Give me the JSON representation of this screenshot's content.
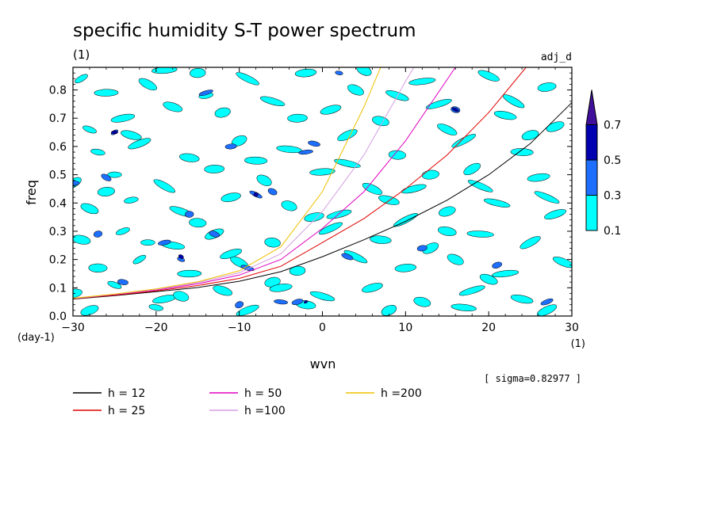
{
  "chart_data": {
    "type": "heatmap",
    "title": "specific humidity S-T power spectrum",
    "subtitle_left": "(1)",
    "subtitle_right": "adj_d",
    "xlabel": "wvn",
    "ylabel": "freq",
    "x_unit": "(1)",
    "y_unit": "(day-1)",
    "xlim": [
      -30,
      30
    ],
    "ylim": [
      0,
      0.88
    ],
    "x_ticks": [
      -30,
      -20,
      -10,
      0,
      10,
      20,
      30
    ],
    "y_ticks": [
      0.0,
      0.1,
      0.2,
      0.3,
      0.4,
      0.5,
      0.6,
      0.7,
      0.8
    ],
    "y_tick_labels": [
      "0.0",
      "0.1",
      "0.2",
      "0.3",
      "0.4",
      "0.5",
      "0.6",
      "0.7",
      "0.8"
    ],
    "note": "[ sigma=0.82977 ]",
    "colorbar": {
      "levels": [
        "0.1",
        "0.3",
        "0.5",
        "0.7"
      ],
      "colors": [
        "#00ffff",
        "#1e6fff",
        "#0000b0",
        "#40109a"
      ]
    },
    "contours": {
      "low": [
        [
          -29,
          0.84
        ],
        [
          -26,
          0.79
        ],
        [
          -21,
          0.82
        ],
        [
          -15,
          0.86
        ],
        [
          -9,
          0.84
        ],
        [
          -2,
          0.86
        ],
        [
          4,
          0.8
        ],
        [
          12,
          0.83
        ],
        [
          20,
          0.85
        ],
        [
          27,
          0.81
        ],
        [
          -28,
          0.66
        ],
        [
          -24,
          0.7
        ],
        [
          -18,
          0.74
        ],
        [
          -12,
          0.72
        ],
        [
          -6,
          0.76
        ],
        [
          1,
          0.73
        ],
        [
          7,
          0.69
        ],
        [
          14,
          0.75
        ],
        [
          22,
          0.71
        ],
        [
          28,
          0.67
        ],
        [
          -27,
          0.58
        ],
        [
          -22,
          0.61
        ],
        [
          -16,
          0.56
        ],
        [
          -10,
          0.62
        ],
        [
          -4,
          0.59
        ],
        [
          3,
          0.64
        ],
        [
          9,
          0.57
        ],
        [
          17,
          0.62
        ],
        [
          24,
          0.58
        ],
        [
          -30,
          0.47
        ],
        [
          -25,
          0.5
        ],
        [
          -19,
          0.46
        ],
        [
          -13,
          0.52
        ],
        [
          -7,
          0.48
        ],
        [
          0,
          0.51
        ],
        [
          6,
          0.45
        ],
        [
          13,
          0.5
        ],
        [
          19,
          0.46
        ],
        [
          26,
          0.49
        ],
        [
          -28,
          0.38
        ],
        [
          -23,
          0.41
        ],
        [
          -17,
          0.37
        ],
        [
          -11,
          0.42
        ],
        [
          -4,
          0.39
        ],
        [
          2,
          0.36
        ],
        [
          8,
          0.41
        ],
        [
          15,
          0.37
        ],
        [
          21,
          0.4
        ],
        [
          28,
          0.36
        ],
        [
          -29,
          0.27
        ],
        [
          -24,
          0.3
        ],
        [
          -18,
          0.25
        ],
        [
          -13,
          0.29
        ],
        [
          -6,
          0.26
        ],
        [
          1,
          0.31
        ],
        [
          7,
          0.27
        ],
        [
          13,
          0.24
        ],
        [
          19,
          0.29
        ],
        [
          25,
          0.26
        ],
        [
          -27,
          0.17
        ],
        [
          -22,
          0.2
        ],
        [
          -16,
          0.15
        ],
        [
          -10,
          0.19
        ],
        [
          -3,
          0.16
        ],
        [
          4,
          0.21
        ],
        [
          10,
          0.17
        ],
        [
          16,
          0.2
        ],
        [
          22,
          0.15
        ],
        [
          29,
          0.19
        ],
        [
          -30,
          0.08
        ],
        [
          -25,
          0.11
        ],
        [
          -19,
          0.06
        ],
        [
          -12,
          0.09
        ],
        [
          -6,
          0.12
        ],
        [
          0,
          0.07
        ],
        [
          6,
          0.1
        ],
        [
          12,
          0.05
        ],
        [
          18,
          0.09
        ],
        [
          24,
          0.06
        ],
        [
          -28,
          0.02
        ],
        [
          -20,
          0.03
        ],
        [
          -9,
          0.02
        ],
        [
          -2,
          0.04
        ],
        [
          8,
          0.02
        ],
        [
          17,
          0.03
        ],
        [
          27,
          0.02
        ],
        [
          -15,
          0.33
        ],
        [
          10,
          0.34
        ],
        [
          -8,
          0.55
        ],
        [
          18,
          0.52
        ],
        [
          -21,
          0.26
        ],
        [
          23,
          0.76
        ],
        [
          -3,
          0.7
        ],
        [
          5,
          0.87
        ],
        [
          -19,
          0.87
        ],
        [
          15,
          0.66
        ],
        [
          -26,
          0.44
        ],
        [
          27,
          0.42
        ],
        [
          -5,
          0.1
        ],
        [
          20,
          0.13
        ],
        [
          -14,
          0.78
        ],
        [
          9,
          0.78
        ],
        [
          -1,
          0.35
        ],
        [
          -17,
          0.07
        ],
        [
          11,
          0.45
        ],
        [
          -23,
          0.64
        ],
        [
          25,
          0.64
        ],
        [
          3,
          0.54
        ],
        [
          -11,
          0.22
        ],
        [
          15,
          0.3
        ]
      ],
      "mid": [
        [
          -25,
          0.65
        ],
        [
          -30,
          0.47
        ],
        [
          -26,
          0.49
        ],
        [
          -16,
          0.36
        ],
        [
          -8,
          0.43
        ],
        [
          -11,
          0.6
        ],
        [
          -6,
          0.44
        ],
        [
          -2,
          0.58
        ],
        [
          3,
          0.21
        ],
        [
          12,
          0.24
        ],
        [
          -17,
          0.2
        ],
        [
          -19,
          0.26
        ],
        [
          -13,
          0.29
        ],
        [
          -27,
          0.29
        ],
        [
          -9,
          0.17
        ],
        [
          -3,
          0.05
        ],
        [
          16,
          0.73
        ],
        [
          -14,
          0.79
        ],
        [
          -1,
          0.61
        ],
        [
          21,
          0.18
        ],
        [
          2,
          0.86
        ],
        [
          27,
          0.05
        ],
        [
          -24,
          0.12
        ],
        [
          -10,
          0.04
        ],
        [
          -5,
          0.05
        ]
      ],
      "high": [
        [
          -2,
          0.05
        ],
        [
          -25,
          0.65
        ],
        [
          -17,
          0.21
        ],
        [
          -8,
          0.43
        ],
        [
          16,
          0.73
        ]
      ]
    },
    "series": [
      {
        "name": "h = 12",
        "color": "#000000",
        "x": [
          -30,
          -25,
          -20,
          -15,
          -10,
          -5,
          0,
          5,
          10,
          15,
          20,
          25,
          30
        ],
        "y": [
          0.06,
          0.072,
          0.086,
          0.101,
          0.123,
          0.157,
          0.21,
          0.27,
          0.335,
          0.41,
          0.5,
          0.61,
          0.755
        ]
      },
      {
        "name": "h = 25",
        "color": "#e00000",
        "x": [
          -30,
          -25,
          -20,
          -15,
          -10,
          -5,
          0,
          5,
          10,
          15,
          20,
          24.5
        ],
        "y": [
          0.061,
          0.074,
          0.089,
          0.108,
          0.133,
          0.176,
          0.26,
          0.345,
          0.45,
          0.57,
          0.72,
          0.88
        ]
      },
      {
        "name": "h = 50",
        "color": "#e000c0",
        "x": [
          -30,
          -25,
          -20,
          -15,
          -10,
          -5,
          0,
          5,
          10,
          16
        ],
        "y": [
          0.062,
          0.076,
          0.092,
          0.114,
          0.145,
          0.2,
          0.31,
          0.44,
          0.62,
          0.88
        ]
      },
      {
        "name": "h =100",
        "color": "#d39ee0",
        "x": [
          -30,
          -25,
          -20,
          -15,
          -10,
          -5,
          0,
          5,
          10,
          11
        ],
        "y": [
          0.062,
          0.077,
          0.094,
          0.118,
          0.153,
          0.22,
          0.37,
          0.57,
          0.83,
          0.88
        ]
      },
      {
        "name": "h =200",
        "color": "#f0c000",
        "x": [
          -30,
          -25,
          -20,
          -15,
          -10,
          -5,
          0,
          5,
          7
        ],
        "y": [
          0.063,
          0.078,
          0.096,
          0.121,
          0.16,
          0.245,
          0.44,
          0.74,
          0.88
        ]
      }
    ]
  }
}
